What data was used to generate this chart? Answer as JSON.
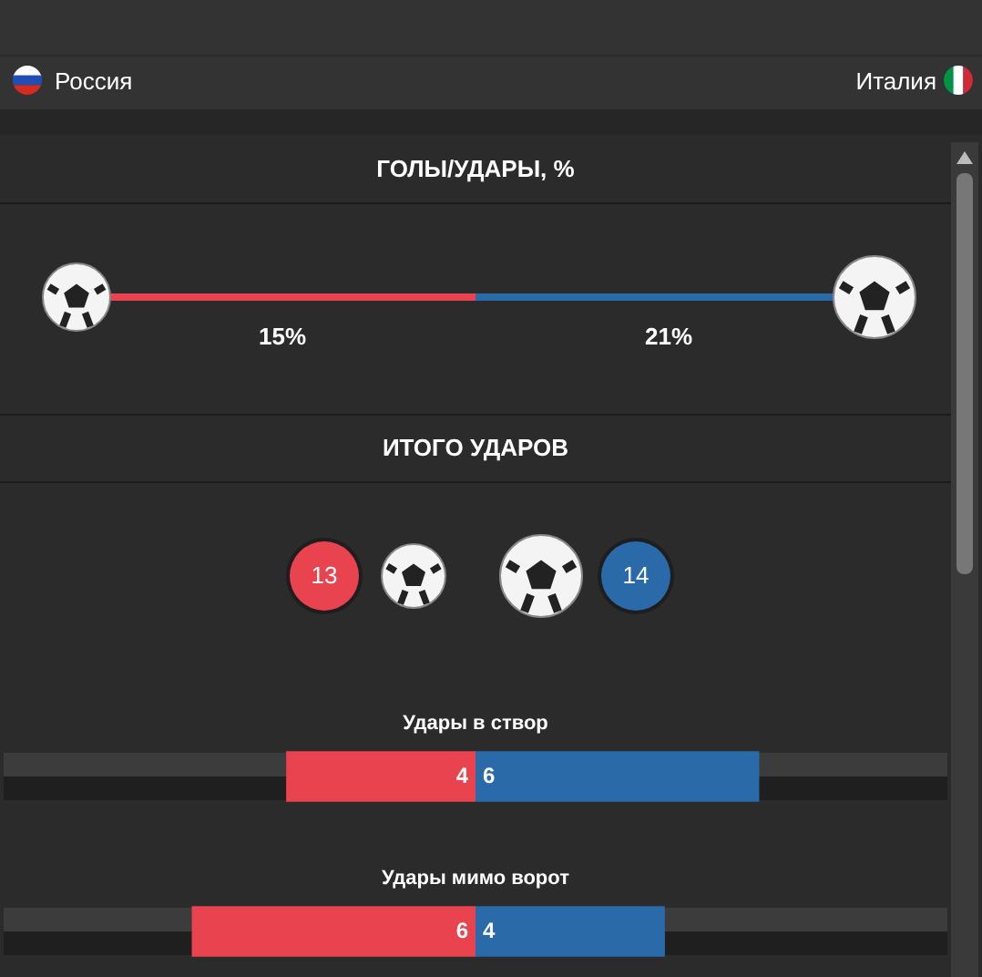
{
  "chart_data": [
    {
      "type": "other",
      "annotations": [
        "Россия",
        "Италия"
      ]
    },
    {
      "type": "other",
      "title": "ГОЛЫ/УДАРЫ, %",
      "categories": [
        null,
        null
      ],
      "values": [
        15,
        21
      ],
      "value_labels": [
        "15%",
        "21%"
      ],
      "colors": [
        "#e8434e",
        "#2a6aa8"
      ]
    },
    {
      "type": "other",
      "title": "ИТОГО УДАРОВ",
      "categories": [
        null,
        null
      ],
      "values": [
        13,
        14
      ],
      "data_labels": true,
      "colors": [
        "#e8434e",
        "#2a6aa8"
      ]
    },
    {
      "type": "bar",
      "orientation": "horizontal",
      "categories": [
        "Удары в створ",
        "Удары мимо ворот"
      ],
      "values": [
        4,
        6
      ],
      "color": "#e8434e",
      "xlim": [
        10,
        0
      ],
      "tick_labels": false,
      "legend": false,
      "data_labels": true
    },
    {
      "type": "bar",
      "orientation": "horizontal",
      "categories": [
        null,
        null
      ],
      "values": [
        6,
        4
      ],
      "color": "#2a6aa8",
      "xlim": [
        0,
        10
      ],
      "tick_labels": false,
      "legend": false,
      "data_labels": true
    }
  ]
}
